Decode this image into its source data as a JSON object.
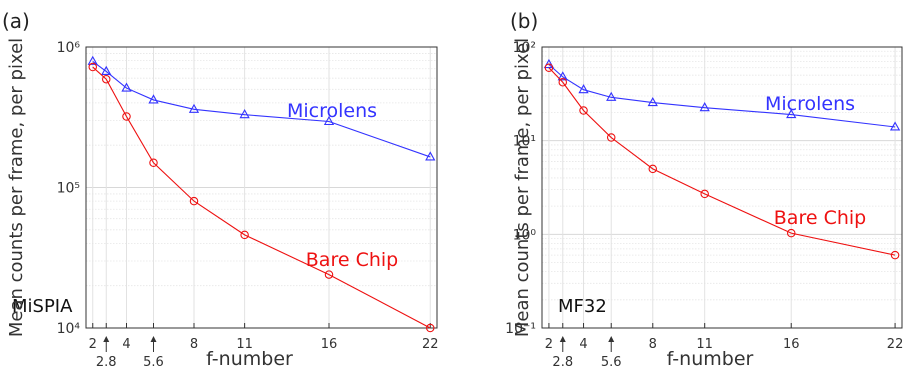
{
  "chart_data": [
    {
      "panel_label": "(a)",
      "type": "line",
      "yscale": "log",
      "ylim": [
        10000,
        1000000
      ],
      "xlim": [
        1.6,
        22.4
      ],
      "ylabel": "Mean counts per frame, per pixel",
      "xlabel": "f-number",
      "xticks": [
        2,
        2.8,
        4,
        5.6,
        8,
        11,
        16,
        22
      ],
      "xtick_labels": [
        "2",
        "2.8",
        "4",
        "5.6",
        "8",
        "11",
        "16",
        "22"
      ],
      "ytick_labels": [
        "10⁴",
        "10⁵",
        "10⁶"
      ],
      "annotation": "MiSPIA",
      "grid": true,
      "series": [
        {
          "name": "Microlens",
          "color": "#3333ff",
          "marker": "triangle",
          "x": [
            2,
            2.8,
            4,
            5.6,
            8,
            11,
            16,
            22
          ],
          "y": [
            790000,
            670000,
            510000,
            420000,
            360000,
            330000,
            295000,
            165000
          ]
        },
        {
          "name": "Bare Chip",
          "color": "#ee1111",
          "marker": "circle",
          "x": [
            2,
            2.8,
            4,
            5.6,
            8,
            11,
            16,
            22
          ],
          "y": [
            720000,
            590000,
            320000,
            150000,
            80000,
            46000,
            24000,
            10000
          ]
        }
      ]
    },
    {
      "panel_label": "(b)",
      "type": "line",
      "yscale": "log",
      "ylim": [
        0.1,
        100
      ],
      "xlim": [
        1.6,
        22.4
      ],
      "ylabel": "Mean counts per frame, per pixel",
      "xlabel": "f-number",
      "xticks": [
        2,
        2.8,
        4,
        5.6,
        8,
        11,
        16,
        22
      ],
      "xtick_labels": [
        "2",
        "2.8",
        "4",
        "5.6",
        "8",
        "11",
        "16",
        "22"
      ],
      "ytick_labels": [
        "10⁻¹",
        "10⁰",
        "10¹",
        "10²"
      ],
      "annotation": "MF32",
      "grid": true,
      "series": [
        {
          "name": "Microlens",
          "color": "#3333ff",
          "marker": "triangle",
          "x": [
            2,
            2.8,
            4,
            5.6,
            8,
            11,
            16,
            22
          ],
          "y": [
            65,
            48,
            35,
            29,
            25.5,
            22.5,
            19,
            14
          ]
        },
        {
          "name": "Bare Chip",
          "color": "#ee1111",
          "marker": "circle",
          "x": [
            2,
            2.8,
            4,
            5.6,
            8,
            11,
            16,
            22
          ],
          "y": [
            60,
            42,
            21,
            10.8,
            5,
            2.7,
            1.03,
            0.6
          ]
        }
      ]
    }
  ]
}
